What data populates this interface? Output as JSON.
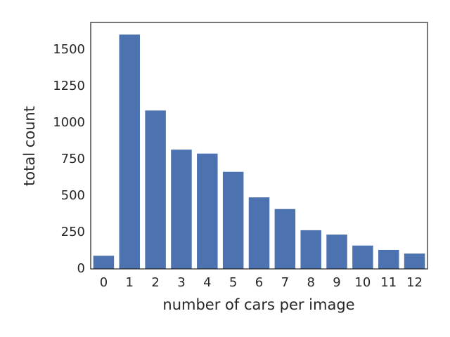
{
  "chart_data": {
    "type": "bar",
    "xlabel": "number of cars per image",
    "ylabel": "total count",
    "categories": [
      "0",
      "1",
      "2",
      "3",
      "4",
      "5",
      "6",
      "7",
      "8",
      "9",
      "10",
      "11",
      "12"
    ],
    "values": [
      90,
      1605,
      1085,
      817,
      790,
      665,
      490,
      410,
      265,
      235,
      160,
      130,
      105
    ],
    "color": "#4c72b0",
    "ylim": [
      0,
      1688
    ],
    "yticks": [
      0,
      250,
      500,
      750,
      1000,
      1250,
      1500
    ],
    "grid": false
  }
}
